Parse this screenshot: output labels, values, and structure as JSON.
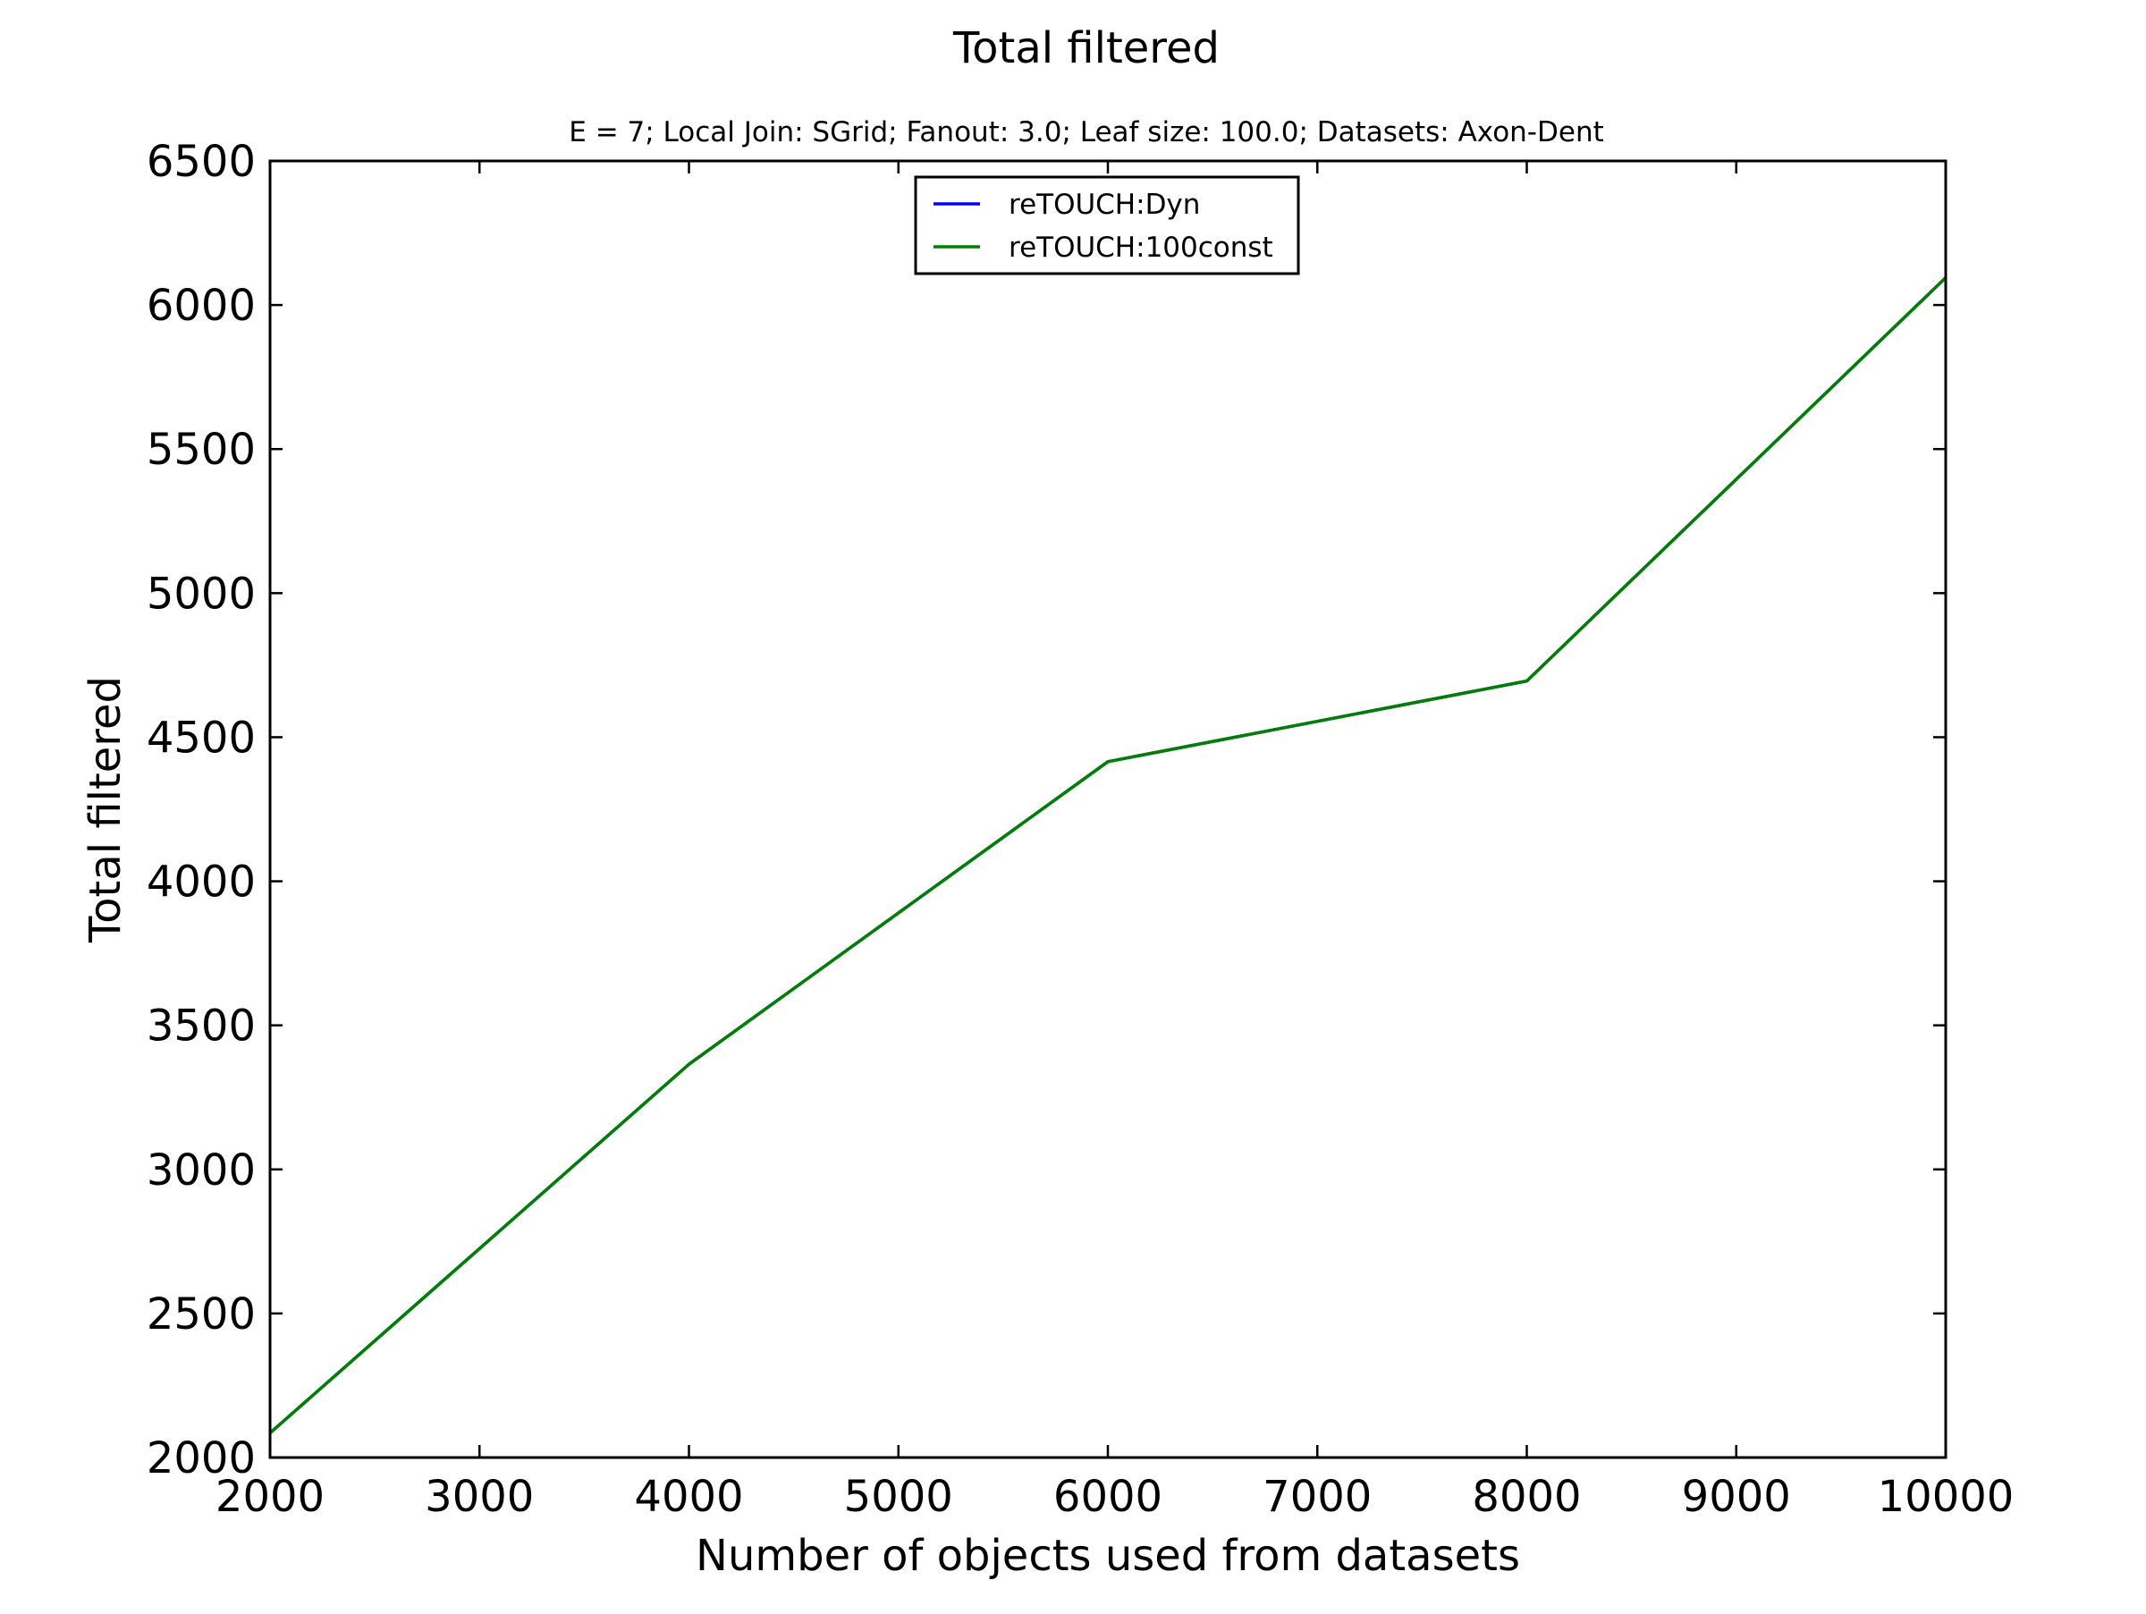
{
  "chart_data": {
    "type": "line",
    "title": "Total filtered",
    "subtitle": "E = 7; Local Join: SGrid; Fanout: 3.0; Leaf size: 100.0; Datasets: Axon-Dent",
    "xlabel": "Number of objects used from datasets",
    "ylabel": "Total filtered",
    "xlim": [
      2000,
      10000
    ],
    "ylim": [
      2000,
      6500
    ],
    "xticks": [
      2000,
      3000,
      4000,
      5000,
      6000,
      7000,
      8000,
      9000,
      10000
    ],
    "yticks": [
      2000,
      2500,
      3000,
      3500,
      4000,
      4500,
      5000,
      5500,
      6000,
      6500
    ],
    "grid": false,
    "legend_position": "top-center",
    "x": [
      2000,
      4000,
      6000,
      8000,
      10000
    ],
    "series": [
      {
        "name": "reTOUCH:Dyn",
        "color": "#0000ff",
        "values": [
          2085,
          3365,
          4415,
          4695,
          6095
        ]
      },
      {
        "name": "reTOUCH:100const",
        "color": "#007f00",
        "values": [
          2085,
          3365,
          4415,
          4695,
          6095
        ]
      }
    ]
  }
}
